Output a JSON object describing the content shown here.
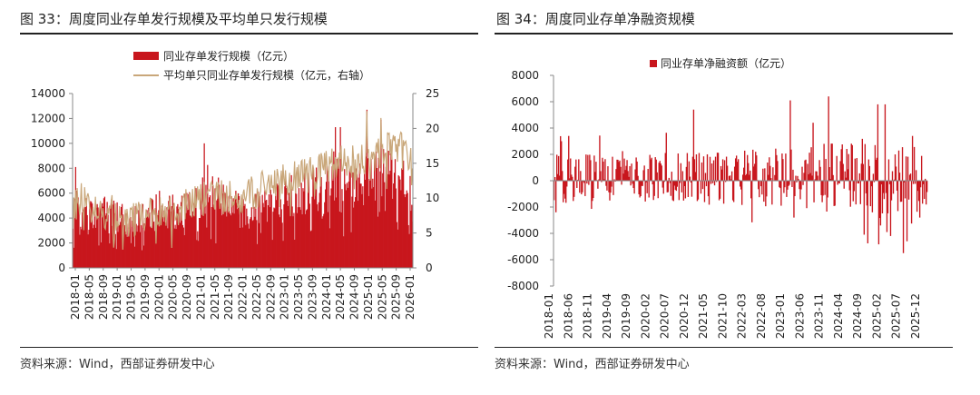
{
  "figures": [
    {
      "title": "图 33：周度同业存单发行规模及平均单只发行规模",
      "source": "资料来源：Wind，西部证券研发中心"
    },
    {
      "title": "图 34：周度同业存单净融资规模",
      "source": "资料来源：Wind，西部证券研发中心"
    }
  ],
  "colors": {
    "bar": "#c8161d",
    "line": "#c9a77a",
    "axis": "#888888"
  },
  "chart_data": [
    {
      "type": "bar",
      "title": "图 33：周度同业存单发行规模及平均单只发行规模",
      "legend": [
        "同业存单发行规模（亿元）",
        "平均单只同业存单发行规模（亿元，右轴）"
      ],
      "x_ticks": [
        "2018-01",
        "2018-05",
        "2018-09",
        "2019-01",
        "2019-05",
        "2019-09",
        "2020-01",
        "2020-05",
        "2020-09",
        "2021-01",
        "2021-05",
        "2021-09",
        "2022-01",
        "2022-05",
        "2022-09",
        "2023-01",
        "2023-05",
        "2023-09",
        "2024-01",
        "2024-05",
        "2024-09",
        "2025-01",
        "2025-05",
        "2025-09",
        "2026-01"
      ],
      "y_left": {
        "min": 0,
        "max": 14000,
        "ticks": [
          0,
          2000,
          4000,
          6000,
          8000,
          10000,
          12000,
          14000
        ]
      },
      "y_right": {
        "min": 0,
        "max": 25,
        "ticks": [
          0,
          5,
          10,
          15,
          20,
          25
        ]
      },
      "anchors_bar": [
        [
          0,
          2400,
          6200
        ],
        [
          8,
          2100,
          6500
        ],
        [
          25,
          2300,
          5400
        ],
        [
          40,
          2800,
          5800
        ],
        [
          60,
          2300,
          5200
        ],
        [
          80,
          2400,
          5200
        ],
        [
          105,
          2700,
          6500
        ],
        [
          125,
          3100,
          5800
        ],
        [
          150,
          3500,
          6500
        ],
        [
          160,
          3100,
          8600
        ],
        [
          185,
          3400,
          6800
        ],
        [
          210,
          3000,
          5800
        ],
        [
          225,
          3400,
          6200
        ],
        [
          240,
          3600,
          6800
        ],
        [
          260,
          3600,
          7600
        ],
        [
          275,
          3600,
          7300
        ],
        [
          290,
          4700,
          8600
        ],
        [
          300,
          3800,
          7400
        ],
        [
          315,
          4400,
          9600
        ],
        [
          330,
          4400,
          8400
        ],
        [
          345,
          4600,
          8600
        ],
        [
          365,
          5200,
          10200
        ],
        [
          380,
          5600,
          9700
        ],
        [
          395,
          5300,
          9200
        ],
        [
          410,
          3500,
          7400
        ]
      ],
      "anchors_line": [
        [
          0,
          9
        ],
        [
          15,
          10
        ],
        [
          30,
          8
        ],
        [
          45,
          8
        ],
        [
          60,
          7
        ],
        [
          80,
          7
        ],
        [
          100,
          8
        ],
        [
          120,
          8
        ],
        [
          140,
          9
        ],
        [
          160,
          10
        ],
        [
          180,
          10
        ],
        [
          200,
          10
        ],
        [
          220,
          11
        ],
        [
          240,
          12
        ],
        [
          260,
          13
        ],
        [
          280,
          13
        ],
        [
          300,
          14
        ],
        [
          320,
          15
        ],
        [
          340,
          15
        ],
        [
          360,
          16
        ],
        [
          380,
          17
        ],
        [
          395,
          17
        ],
        [
          410,
          14
        ]
      ],
      "spikes": [
        [
          3,
          8100
        ],
        [
          158,
          10000
        ],
        [
          316,
          11300
        ],
        [
          322,
          11300
        ],
        [
          354,
          12700
        ],
        [
          371,
          11900
        ]
      ],
      "num_weeks": 410
    },
    {
      "type": "bar",
      "title": "图 34：周度同业存单净融资规模",
      "legend": [
        "同业存单净融资额（亿元）"
      ],
      "x_ticks": [
        "2018-01",
        "2018-06",
        "2018-11",
        "2019-04",
        "2019-09",
        "2020-02",
        "2020-07",
        "2020-12",
        "2021-05",
        "2021-10",
        "2022-03",
        "2022-08",
        "2023-01",
        "2023-06",
        "2023-11",
        "2024-04",
        "2024-09",
        "2025-02",
        "2025-07",
        "2025-12"
      ],
      "y": {
        "min": -8000,
        "max": 8000,
        "ticks": [
          8000,
          6000,
          4000,
          2000,
          0,
          -2000,
          -4000,
          -6000,
          -8000
        ]
      },
      "anchors": [
        [
          0,
          2000,
          -1800
        ],
        [
          40,
          2100,
          -1600
        ],
        [
          80,
          2100,
          -1700
        ],
        [
          120,
          2100,
          -1800
        ],
        [
          160,
          2300,
          -2000
        ],
        [
          200,
          2400,
          -2100
        ],
        [
          240,
          2500,
          -2200
        ],
        [
          280,
          2700,
          -2400
        ],
        [
          320,
          3000,
          -2600
        ],
        [
          360,
          3000,
          -2900
        ],
        [
          395,
          2600,
          -3300
        ],
        [
          410,
          1400,
          -2700
        ]
      ],
      "spikes": [
        [
          2,
          -2400
        ],
        [
          8,
          3000
        ],
        [
          16,
          3400
        ],
        [
          153,
          5400
        ],
        [
          259,
          6100
        ],
        [
          263,
          -2800
        ],
        [
          301,
          6400
        ],
        [
          340,
          -4100
        ],
        [
          355,
          5800
        ],
        [
          358,
          -3400
        ],
        [
          363,
          5800
        ],
        [
          365,
          -3900
        ],
        [
          369,
          -4200
        ],
        [
          383,
          -5500
        ],
        [
          387,
          -4600
        ],
        [
          393,
          3400
        ],
        [
          401,
          -2800
        ]
      ],
      "num_weeks": 410
    }
  ]
}
